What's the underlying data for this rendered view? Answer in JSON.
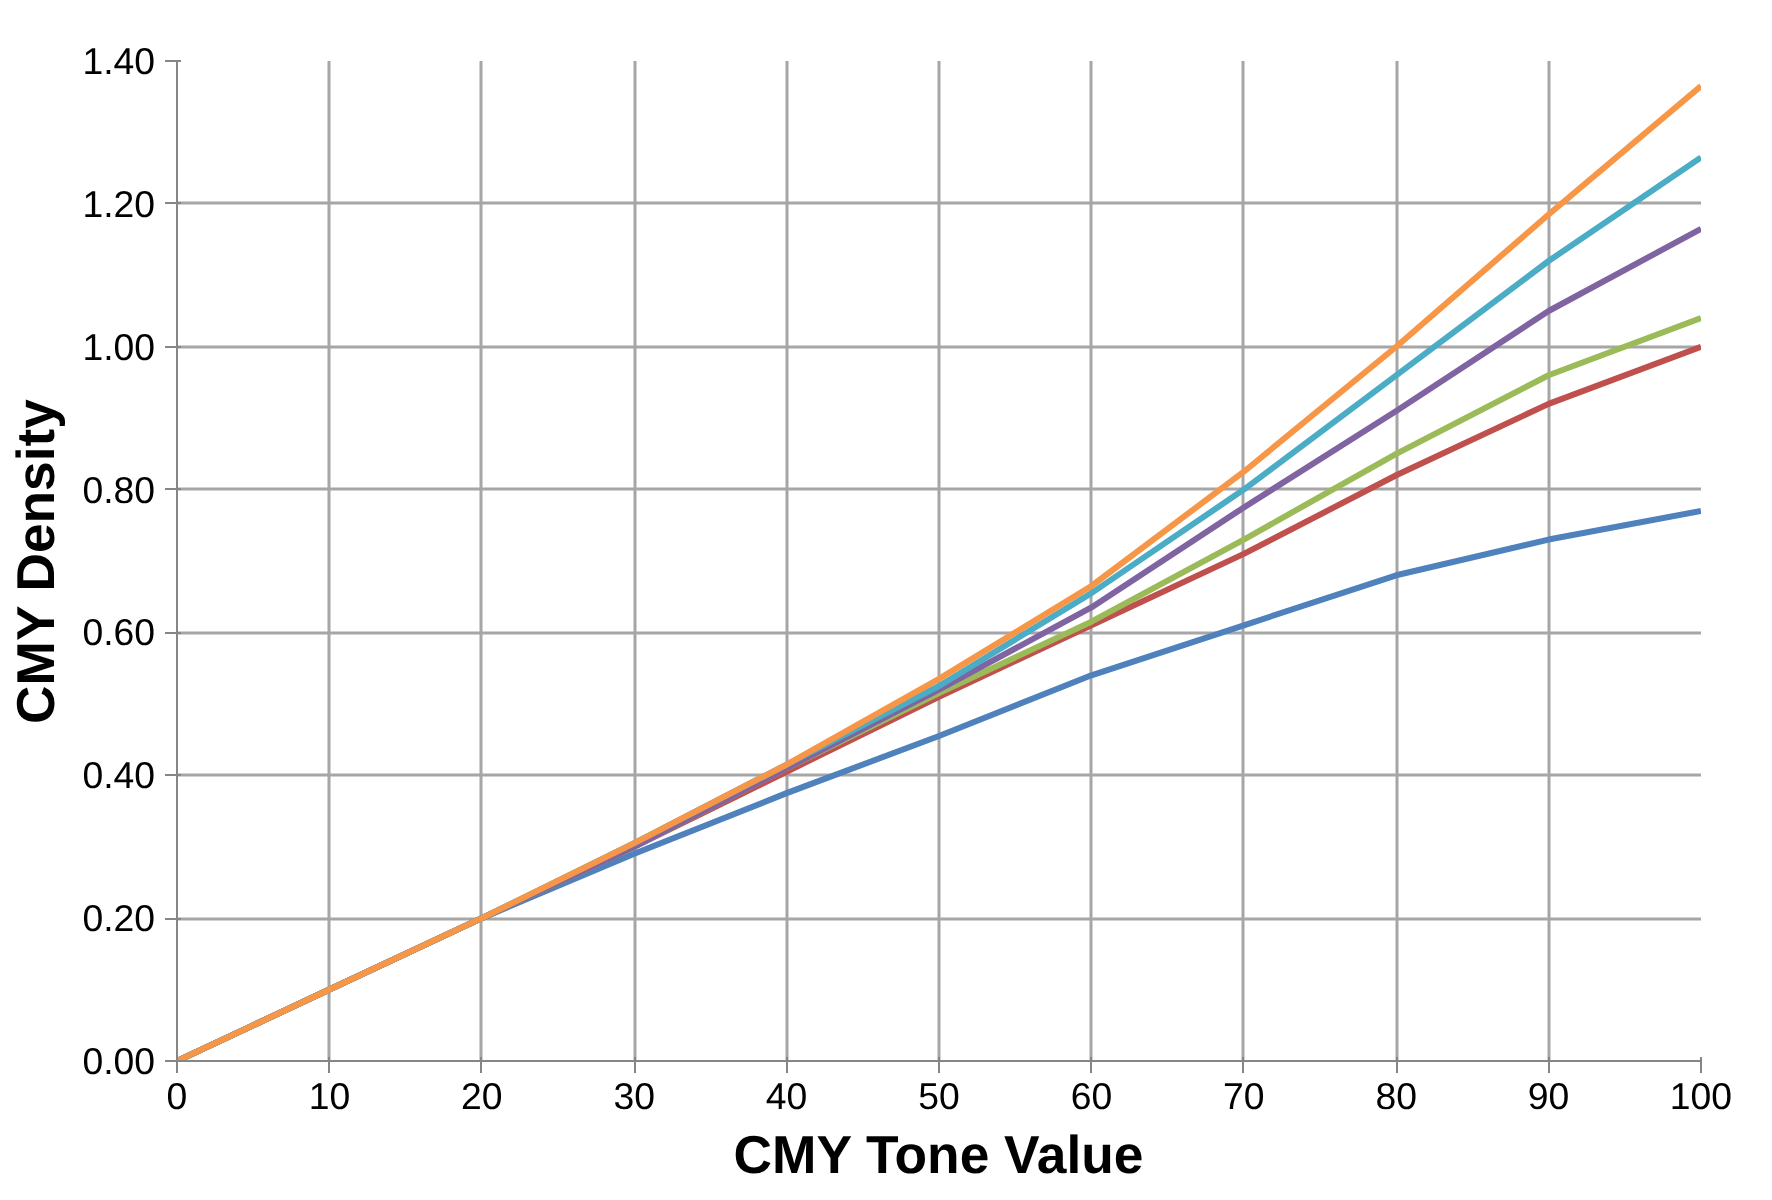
{
  "chart_data": {
    "type": "line",
    "xlabel": "CMY Tone Value",
    "ylabel": "CMY Density",
    "x": [
      0,
      10,
      20,
      30,
      40,
      50,
      60,
      70,
      80,
      90,
      100
    ],
    "series": [
      {
        "color": "#4f81bd",
        "values": [
          0,
          0.1,
          0.2,
          0.29,
          0.375,
          0.455,
          0.54,
          0.61,
          0.68,
          0.73,
          0.77
        ]
      },
      {
        "color": "#c0504d",
        "values": [
          0,
          0.1,
          0.2,
          0.3,
          0.405,
          0.51,
          0.61,
          0.71,
          0.82,
          0.92,
          1.0
        ]
      },
      {
        "color": "#9bbb59",
        "values": [
          0,
          0.1,
          0.2,
          0.3,
          0.41,
          0.515,
          0.615,
          0.73,
          0.85,
          0.96,
          1.04
        ]
      },
      {
        "color": "#8064a2",
        "values": [
          0,
          0.1,
          0.2,
          0.3,
          0.41,
          0.52,
          0.635,
          0.775,
          0.91,
          1.05,
          1.165
        ]
      },
      {
        "color": "#4bacc6",
        "values": [
          0,
          0.1,
          0.2,
          0.305,
          0.415,
          0.525,
          0.655,
          0.8,
          0.96,
          1.12,
          1.265
        ]
      },
      {
        "color": "#f79646",
        "values": [
          0,
          0.1,
          0.2,
          0.305,
          0.415,
          0.535,
          0.665,
          0.825,
          1.0,
          1.185,
          1.365
        ]
      }
    ],
    "xlim": [
      0,
      100
    ],
    "xticks": [
      0,
      10,
      20,
      30,
      40,
      50,
      60,
      70,
      80,
      90,
      100
    ],
    "ylim": [
      0,
      1.4
    ],
    "yticks": [
      {
        "value": 0,
        "label": "0.00"
      },
      {
        "value": 0.2,
        "label": "0.20"
      },
      {
        "value": 0.4,
        "label": "0.40"
      },
      {
        "value": 0.6,
        "label": "0.60"
      },
      {
        "value": 0.8,
        "label": "0.80"
      },
      {
        "value": 1.0,
        "label": "1.00"
      },
      {
        "value": 1.2,
        "label": "1.20"
      },
      {
        "value": 1.4,
        "label": "1.40"
      }
    ],
    "grid": true,
    "marker": "none",
    "line_style": "solid"
  }
}
